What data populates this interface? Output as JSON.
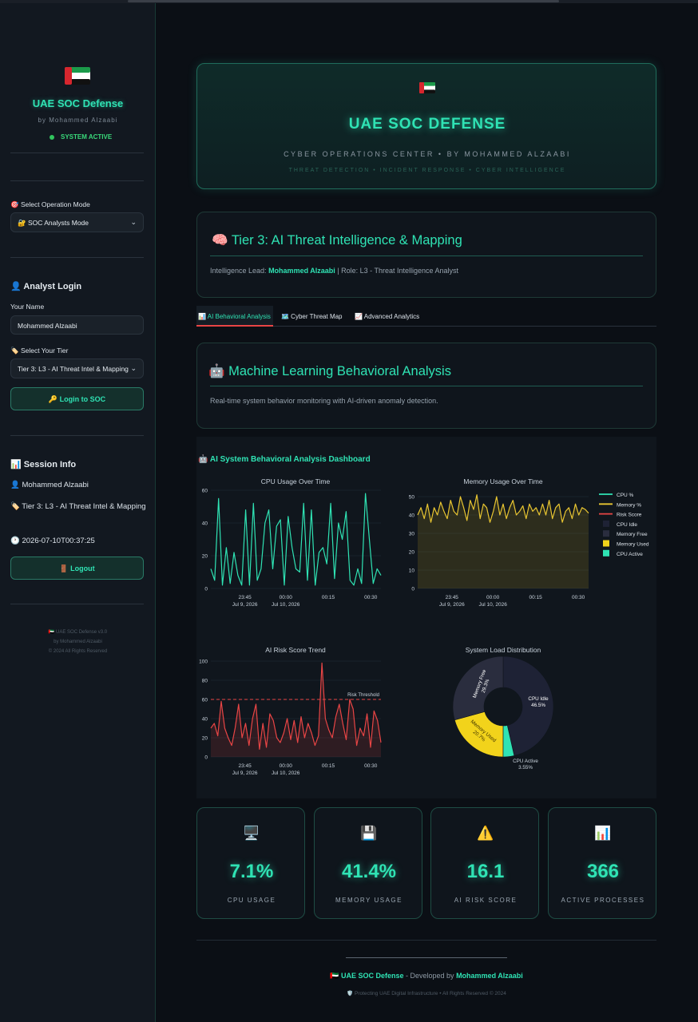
{
  "sidebar": {
    "title": "UAE SOC Defense",
    "byline": "by Mohammed Alzaabi",
    "status": "SYSTEM ACTIVE",
    "mode_label": "🎯 Select Operation Mode",
    "mode_value": "🔐 SOC Analysts Mode",
    "login_heading": "👤 Analyst Login",
    "name_label": "Your Name",
    "name_value": "Mohammed Alzaabi",
    "tier_label": "🏷️ Select Your Tier",
    "tier_value": "Tier 3: L3 - AI Threat Intel & Mapping",
    "login_button": "🔑 Login to SOC",
    "session_heading": "📊 Session Info",
    "session_user": "👤 Mohammed Alzaabi",
    "session_tier": "🏷️ Tier 3: L3 - AI Threat Intel & Mapping",
    "session_time": "🕐 2026-07-10T00:37:25",
    "logout_button": "🚪 Logout",
    "footer_line1": "🇦🇪 UAE SOC Defense v3.0",
    "footer_line2": "by Mohammed Alzaabi",
    "footer_line3": "© 2024 All Rights Reserved"
  },
  "hero": {
    "title": "UAE SOC DEFENSE",
    "subtitle": "CYBER OPERATIONS CENTER • BY MOHAMMED ALZAABI",
    "tagline": "THREAT DETECTION • INCIDENT RESPONSE • CYBER INTELLIGENCE"
  },
  "tier_card": {
    "title": "🧠 Tier 3: AI Threat Intelligence & Mapping",
    "lead_prefix": "Intelligence Lead: ",
    "lead_name": "Mohammed Alzaabi",
    "lead_suffix": " | Role: L3 - Threat Intelligence Analyst"
  },
  "tabs": [
    {
      "label": "📊 AI Behavioral Analysis",
      "active": true
    },
    {
      "label": "🗺️ Cyber Threat Map",
      "active": false
    },
    {
      "label": "📈 Advanced Analytics",
      "active": false
    }
  ],
  "ml_card": {
    "title": "🤖 Machine Learning Behavioral Analysis",
    "description": "Real-time system behavior monitoring with AI-driven anomaly detection."
  },
  "dashboard_title": "🤖 AI System Behavioral Analysis Dashboard",
  "chart_data": [
    {
      "type": "line",
      "title": "CPU Usage Over Time",
      "series": [
        {
          "name": "CPU %",
          "color": "#2fe3b4",
          "values": [
            12,
            5,
            55,
            2,
            25,
            3,
            22,
            8,
            2,
            48,
            2,
            52,
            5,
            12,
            40,
            48,
            12,
            38,
            42,
            2,
            44,
            25,
            12,
            10,
            52,
            5,
            48,
            2,
            22,
            25,
            15,
            52,
            6,
            40,
            30,
            47,
            5,
            2,
            12,
            3,
            58,
            30,
            3,
            12,
            8
          ]
        }
      ],
      "xticks": [
        "23:45\nJul 9, 2026",
        "00:00\nJul 10, 2026",
        "00:15",
        "00:30"
      ],
      "ylim": [
        0,
        60
      ],
      "yticks": [
        0,
        20,
        40,
        60
      ]
    },
    {
      "type": "area",
      "title": "Memory Usage Over Time",
      "series": [
        {
          "name": "Memory %",
          "color": "#e8c531",
          "values": [
            40,
            44,
            38,
            46,
            36,
            44,
            40,
            47,
            42,
            38,
            48,
            42,
            40,
            50,
            44,
            37,
            48,
            43,
            51,
            38,
            46,
            44,
            36,
            42,
            50,
            40,
            46,
            38,
            44,
            48,
            40,
            42,
            45,
            38,
            46,
            42,
            44,
            40,
            46,
            40,
            48,
            38,
            44,
            46,
            36,
            42,
            44,
            38,
            46,
            40,
            44,
            43,
            41
          ]
        }
      ],
      "xticks": [
        "23:45\nJul 9, 2026",
        "00:00\nJul 10, 2026",
        "00:15",
        "00:30"
      ],
      "ylim": [
        0,
        50
      ],
      "yticks": [
        0,
        10,
        20,
        30,
        40,
        50
      ]
    },
    {
      "type": "area",
      "title": "AI Risk Score Trend",
      "series": [
        {
          "name": "Risk Score",
          "color": "#e84545",
          "values": [
            30,
            35,
            22,
            58,
            30,
            20,
            12,
            30,
            55,
            20,
            35,
            12,
            40,
            55,
            8,
            35,
            10,
            45,
            38,
            20,
            15,
            25,
            40,
            18,
            38,
            15,
            42,
            20,
            35,
            25,
            12,
            22,
            98,
            40,
            28,
            20,
            42,
            55,
            35,
            18,
            60,
            50,
            12,
            30,
            22,
            45,
            10,
            48,
            38,
            15
          ]
        }
      ],
      "threshold": {
        "label": "Risk Threshold",
        "value": 60
      },
      "xticks": [
        "23:45\nJul 9, 2026",
        "00:00\nJul 10, 2026",
        "00:15",
        "00:30"
      ],
      "ylim": [
        0,
        100
      ],
      "yticks": [
        0,
        20,
        40,
        60,
        80,
        100
      ]
    },
    {
      "type": "pie",
      "title": "System Load Distribution",
      "slices": [
        {
          "label": "CPU Idle",
          "value": 46.5,
          "color": "#1e2235"
        },
        {
          "label": "CPU Active",
          "value": 3.55,
          "color": "#2fe3b4"
        },
        {
          "label": "Memory Used",
          "value": 20.7,
          "color": "#f2d31b"
        },
        {
          "label": "Memory Free",
          "value": 29.3,
          "color": "#2a2d3e"
        }
      ],
      "slice_texts": [
        "CPU Idle\n46.5%",
        "CPU Active\n3.55%",
        "Memory Used\n20.7%",
        "Memory Free\n29.3%"
      ]
    }
  ],
  "legend": [
    {
      "label": "CPU %",
      "kind": "line",
      "color": "#2fe3b4"
    },
    {
      "label": "Memory %",
      "kind": "line",
      "color": "#e8c531"
    },
    {
      "label": "Risk Score",
      "kind": "line",
      "color": "#e84545"
    },
    {
      "label": "CPU Idle",
      "kind": "box",
      "color": "#1e2235"
    },
    {
      "label": "Memory Free",
      "kind": "box",
      "color": "#2a2d3e"
    },
    {
      "label": "Memory Used",
      "kind": "box",
      "color": "#f2d31b"
    },
    {
      "label": "CPU Active",
      "kind": "box",
      "color": "#2fe3b4"
    }
  ],
  "metrics": [
    {
      "icon": "🖥️",
      "value": "7.1%",
      "label": "CPU USAGE"
    },
    {
      "icon": "💾",
      "value": "41.4%",
      "label": "MEMORY USAGE"
    },
    {
      "icon": "⚠️",
      "value": "16.1",
      "label": "AI RISK SCORE"
    },
    {
      "icon": "📊",
      "value": "366",
      "label": "ACTIVE PROCESSES"
    }
  ],
  "footer": {
    "flag": "🇦🇪",
    "brand": "UAE SOC Defense",
    "developed_by": " - Developed by ",
    "author": "Mohammed Alzaabi",
    "sub": "🛡️ Protecting UAE Digital Infrastructure • All Rights Reserved © 2024"
  }
}
